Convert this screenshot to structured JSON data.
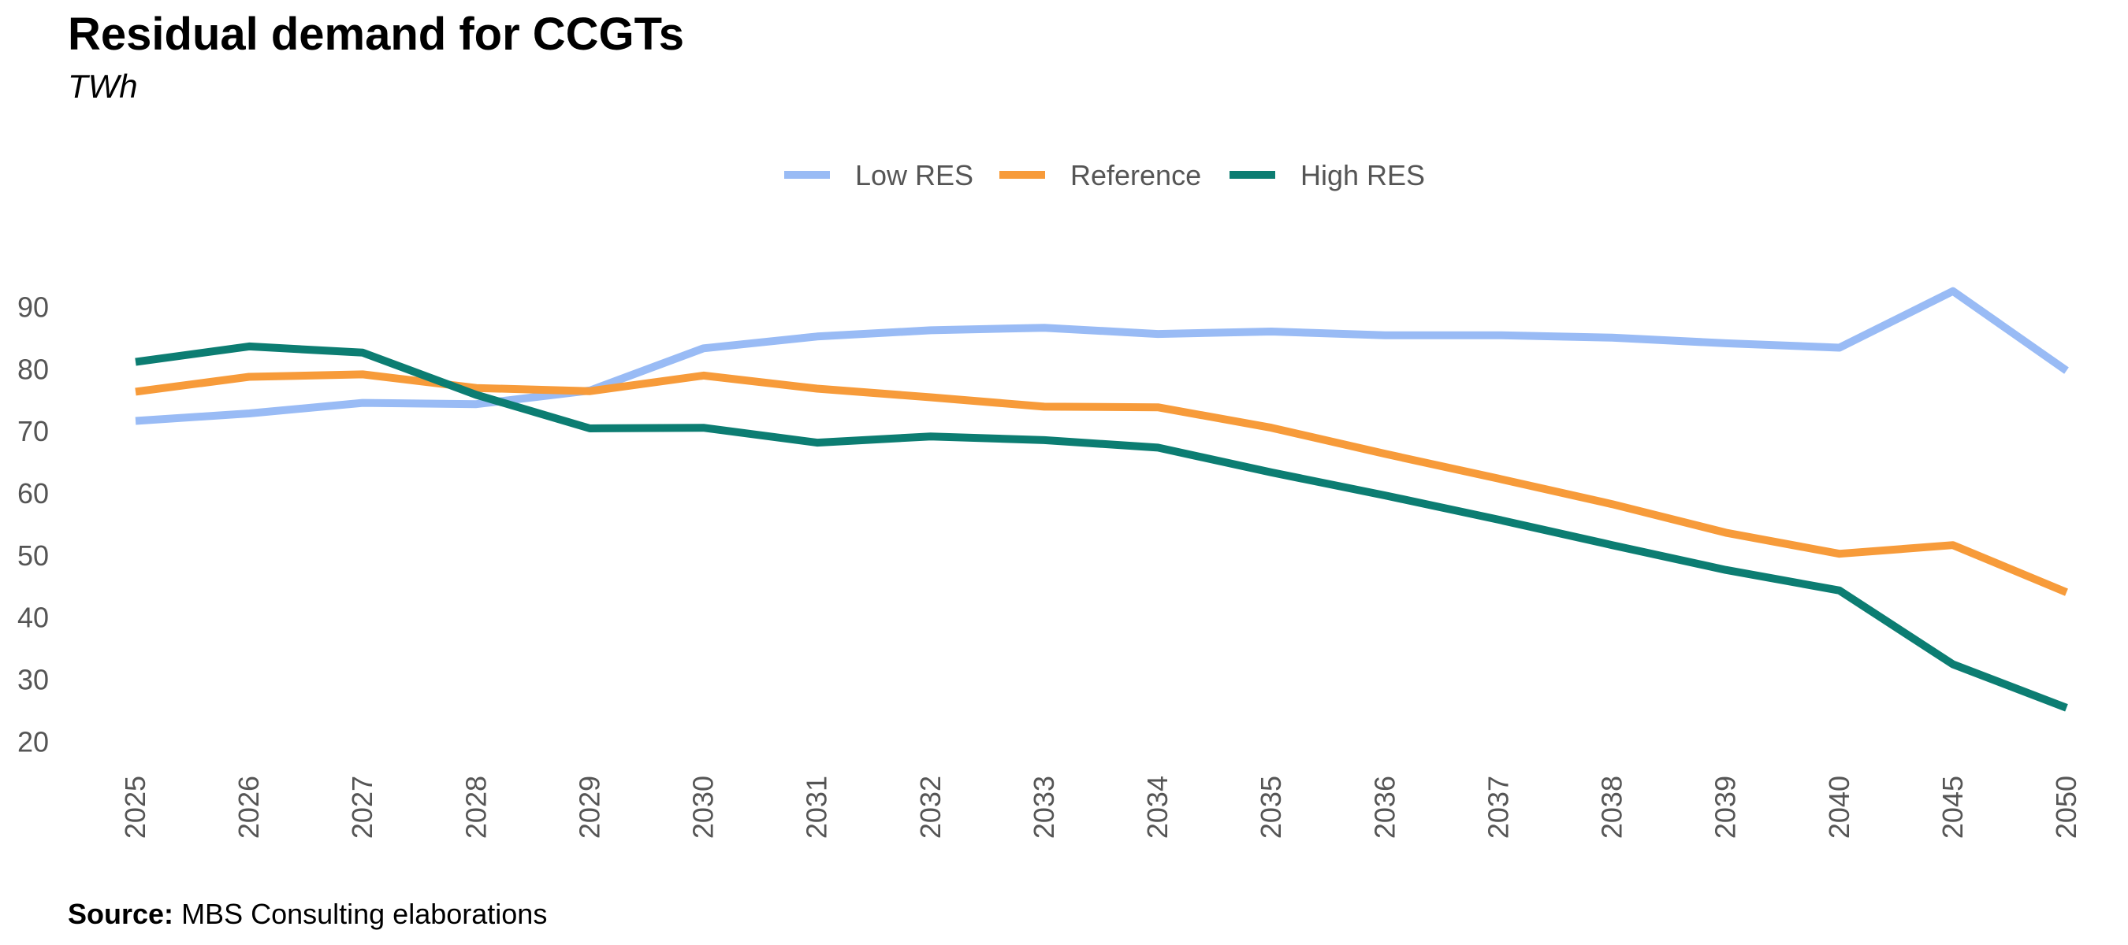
{
  "header": {
    "title": "Residual demand for CCGTs",
    "subtitle": "TWh"
  },
  "footer": {
    "source_label": "Source:",
    "source_text": "MBS Consulting elaborations"
  },
  "chart_data": {
    "type": "line",
    "title": "Residual demand for CCGTs",
    "subtitle": "TWh",
    "xlabel": "",
    "ylabel": "",
    "x": [
      "2025",
      "2026",
      "2027",
      "2028",
      "2029",
      "2030",
      "2031",
      "2032",
      "2033",
      "2034",
      "2035",
      "2036",
      "2037",
      "2038",
      "2039",
      "2040",
      "2045",
      "2050"
    ],
    "yticks": [
      20,
      30,
      40,
      50,
      60,
      70,
      80,
      90
    ],
    "ylim": [
      17,
      95
    ],
    "grid": false,
    "legend_position": "top-center",
    "series": [
      {
        "name": "Low RES",
        "color": "#99BBF5",
        "values": [
          71.6,
          72.8,
          74.5,
          74.3,
          76.5,
          83.3,
          85.2,
          86.2,
          86.6,
          85.6,
          86.0,
          85.4,
          85.4,
          85.0,
          84.1,
          83.4,
          92.5,
          79.7
        ]
      },
      {
        "name": "Reference",
        "color": "#F79B3A",
        "values": [
          76.3,
          78.7,
          79.1,
          76.9,
          76.4,
          78.9,
          76.8,
          75.4,
          73.9,
          73.8,
          70.5,
          66.3,
          62.3,
          58.2,
          53.6,
          50.2,
          51.6,
          44.0
        ]
      },
      {
        "name": "High RES",
        "color": "#0C7D72",
        "values": [
          81.1,
          83.6,
          82.6,
          75.8,
          70.4,
          70.5,
          68.1,
          69.1,
          68.5,
          67.3,
          63.3,
          59.6,
          55.7,
          51.6,
          47.6,
          44.3,
          32.4,
          25.4
        ]
      }
    ]
  }
}
